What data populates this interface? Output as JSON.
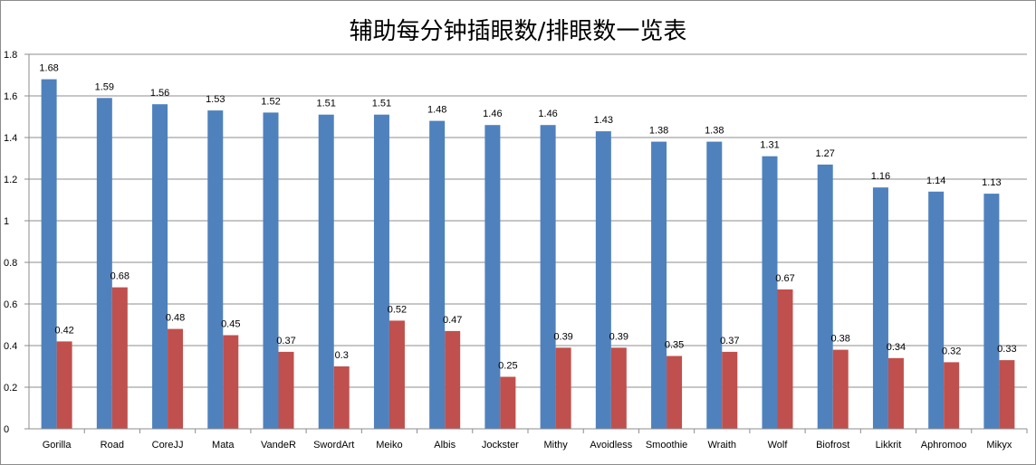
{
  "chart_data": {
    "type": "bar",
    "title": "辅助每分钟插眼数/排眼数一览表",
    "categories": [
      "Gorilla",
      "Road",
      "CoreJJ",
      "Mata",
      "VandeR",
      "SwordArt",
      "Meiko",
      "Albis",
      "Jockster",
      "Mithy",
      "Avoidless",
      "Smoothie",
      "Wraith",
      "Wolf",
      "Biofrost",
      "Likkrit",
      "Aphromoo",
      "Mikyx"
    ],
    "series": [
      {
        "values": [
          1.68,
          1.59,
          1.56,
          1.53,
          1.52,
          1.51,
          1.51,
          1.48,
          1.46,
          1.46,
          1.43,
          1.38,
          1.38,
          1.31,
          1.27,
          1.16,
          1.14,
          1.13
        ],
        "color": "#4f81bd"
      },
      {
        "values": [
          0.42,
          0.68,
          0.48,
          0.45,
          0.37,
          0.3,
          0.52,
          0.47,
          0.25,
          0.39,
          0.39,
          0.35,
          0.37,
          0.67,
          0.38,
          0.34,
          0.32,
          0.33
        ],
        "color": "#c0504d"
      }
    ],
    "ylim": [
      0,
      1.8
    ],
    "yticks": [
      "0",
      "0.2",
      "0.4",
      "0.6",
      "0.8",
      "1",
      "1.2",
      "1.4",
      "1.6",
      "1.8"
    ],
    "grid": true,
    "legend": "none"
  }
}
